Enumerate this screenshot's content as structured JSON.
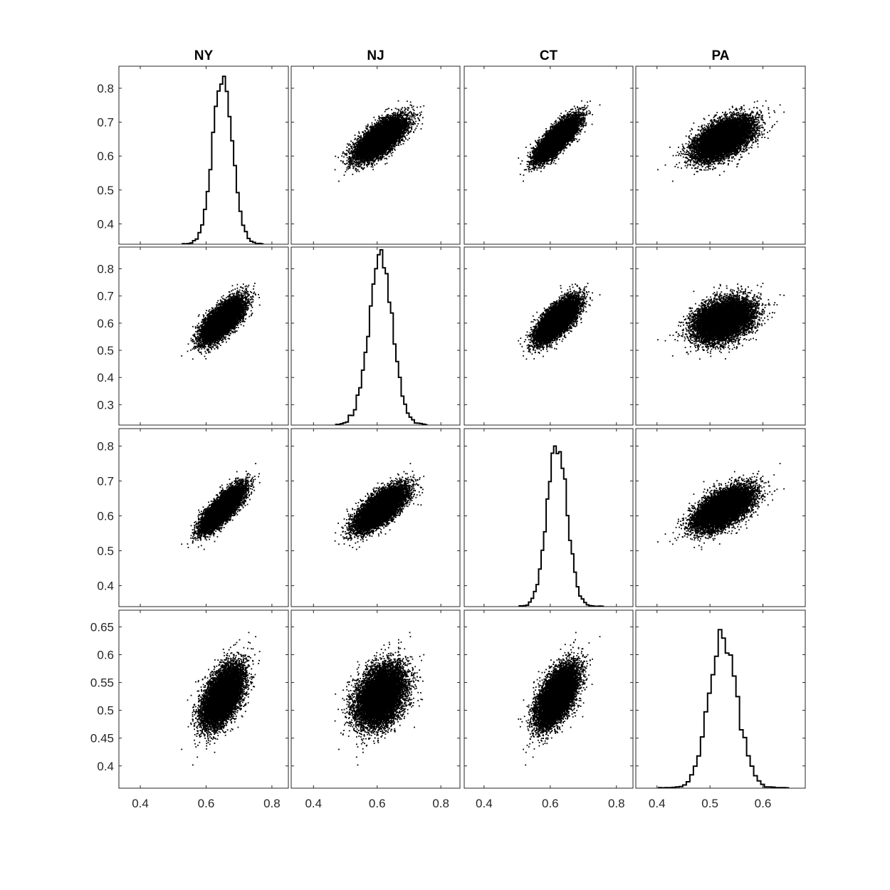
{
  "chart_data": {
    "type": "scatter",
    "variables": [
      "NY",
      "NJ",
      "CT",
      "PA"
    ],
    "means": [
      0.65,
      0.61,
      0.62,
      0.525
    ],
    "std": [
      0.03,
      0.037,
      0.03,
      0.027
    ],
    "correlation": [
      [
        1.0,
        0.7,
        0.8,
        0.55
      ],
      [
        0.7,
        1.0,
        0.7,
        0.35
      ],
      [
        0.8,
        0.7,
        1.0,
        0.6
      ],
      [
        0.55,
        0.35,
        0.6,
        1.0
      ]
    ],
    "sample_count": 10000,
    "histogram_bin_width": {
      "NY": 0.0083,
      "NJ": 0.0083,
      "CT": 0.0076,
      "PA": 0.0067
    },
    "histogram_peak_on_y_axis": [
      0.835,
      0.87,
      0.8,
      0.645
    ],
    "x_axes": [
      {
        "column": "NY",
        "range": [
          0.335,
          0.85
        ],
        "ticks": [
          0.4,
          0.6,
          0.8
        ],
        "tick_labels": [
          "0.4",
          "0.6",
          "0.8"
        ]
      },
      {
        "column": "NJ",
        "range": [
          0.33,
          0.86
        ],
        "ticks": [
          0.4,
          0.6,
          0.8
        ],
        "tick_labels": [
          "0.4",
          "0.6",
          "0.8"
        ]
      },
      {
        "column": "CT",
        "range": [
          0.34,
          0.85
        ],
        "ticks": [
          0.4,
          0.6,
          0.8
        ],
        "tick_labels": [
          "0.4",
          "0.6",
          "0.8"
        ]
      },
      {
        "column": "PA",
        "range": [
          0.36,
          0.68
        ],
        "ticks": [
          0.4,
          0.5,
          0.6
        ],
        "tick_labels": [
          "0.4",
          "0.5",
          "0.6"
        ]
      }
    ],
    "y_axes": [
      {
        "row": "NY",
        "range": [
          0.34,
          0.865
        ],
        "ticks": [
          0.4,
          0.5,
          0.6,
          0.7,
          0.8
        ],
        "tick_labels": [
          "0.4",
          "0.5",
          "0.6",
          "0.7",
          "0.8"
        ]
      },
      {
        "row": "NJ",
        "range": [
          0.225,
          0.88
        ],
        "ticks": [
          0.3,
          0.4,
          0.5,
          0.6,
          0.7,
          0.8
        ],
        "tick_labels": [
          "0.3",
          "0.4",
          "0.5",
          "0.6",
          "0.7",
          "0.8"
        ]
      },
      {
        "row": "CT",
        "range": [
          0.34,
          0.85
        ],
        "ticks": [
          0.4,
          0.5,
          0.6,
          0.7,
          0.8
        ],
        "tick_labels": [
          "0.4",
          "0.5",
          "0.6",
          "0.7",
          "0.8"
        ]
      },
      {
        "row": "PA",
        "range": [
          0.36,
          0.68
        ],
        "ticks": [
          0.4,
          0.45,
          0.5,
          0.55,
          0.6,
          0.65
        ],
        "tick_labels": [
          "0.4",
          "0.45",
          "0.5",
          "0.55",
          "0.6",
          "0.65"
        ]
      }
    ],
    "grid": false,
    "legend": "none",
    "diagonal": "histogram (stairs)",
    "off_diagonal": "scatter",
    "marker_color": "#000000"
  }
}
